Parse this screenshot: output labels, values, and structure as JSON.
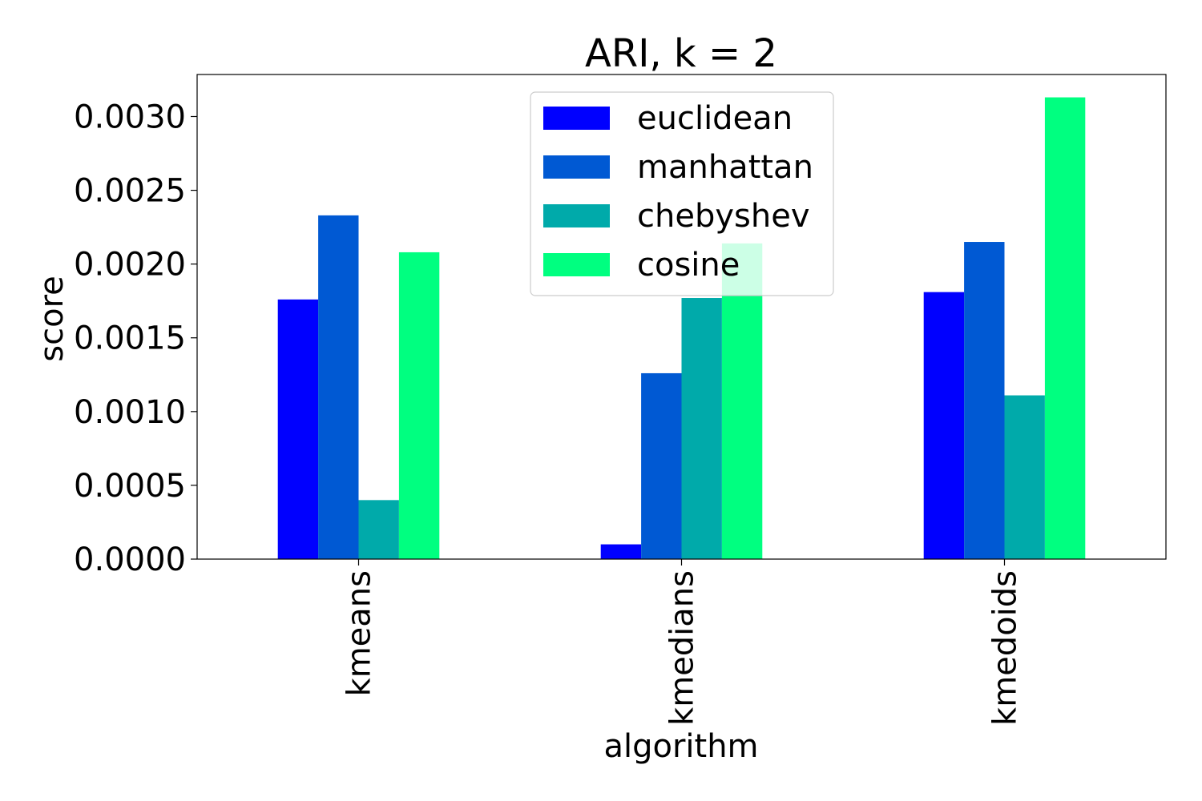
{
  "chart_data": {
    "type": "bar",
    "title": "ARI, k = 2",
    "xlabel": "algorithm",
    "ylabel": "score",
    "categories": [
      "kmeans",
      "kmedians",
      "kmedoids"
    ],
    "series": [
      {
        "name": "euclidean",
        "color": "#0000ff",
        "values": [
          0.00176,
          0.0001,
          0.00181
        ]
      },
      {
        "name": "manhattan",
        "color": "#0059d3",
        "values": [
          0.00233,
          0.00126,
          0.00215
        ]
      },
      {
        "name": "chebyshev",
        "color": "#00aaaa",
        "values": [
          0.0004,
          0.00177,
          0.00111
        ]
      },
      {
        "name": "cosine",
        "color": "#00ff80",
        "values": [
          0.00208,
          0.00214,
          0.00313
        ]
      }
    ],
    "ylim": [
      0,
      0.003285
    ],
    "yticks": [
      0.0,
      0.0005,
      0.001,
      0.0015,
      0.002,
      0.0025,
      0.003
    ],
    "ytick_labels": [
      "0.0000",
      "0.0005",
      "0.0010",
      "0.0015",
      "0.0020",
      "0.0025",
      "0.0030"
    ],
    "grid": false,
    "legend_position": "top-center"
  }
}
